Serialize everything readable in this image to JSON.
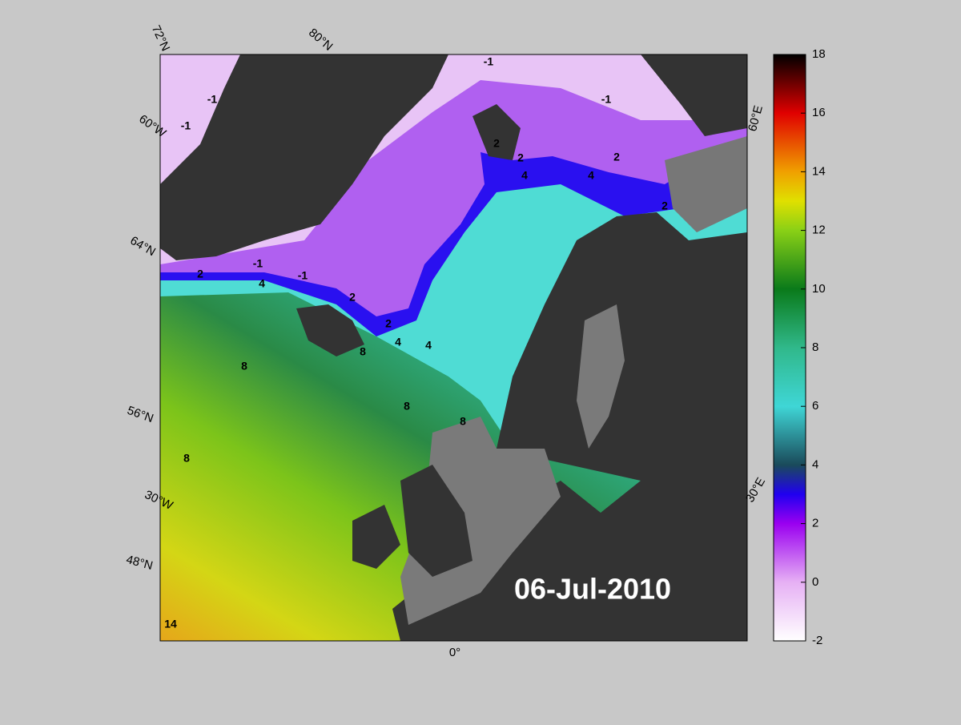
{
  "map": {
    "date": "06-Jul-2010",
    "graticule_labels": [
      "72°N",
      "80°N",
      "60°W",
      "64°N",
      "56°N",
      "30°W",
      "48°N",
      "0°",
      "30°E",
      "60°E"
    ],
    "contour_levels": [
      -1,
      2,
      4,
      8,
      14
    ]
  },
  "colorbar": {
    "lim": [
      -2,
      18
    ],
    "ticks": [
      -2,
      0,
      2,
      4,
      6,
      8,
      10,
      12,
      14,
      16,
      18
    ]
  }
}
